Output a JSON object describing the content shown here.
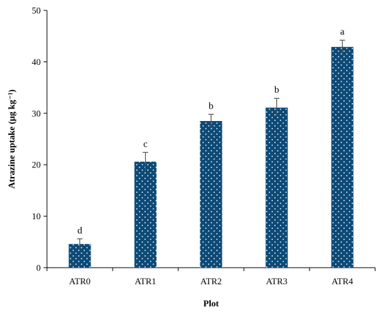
{
  "chart_data": {
    "type": "bar",
    "xlabel": "Plot",
    "ylabel": "Atrazine uptake (μg kg⁻¹)",
    "categories": [
      "ATR0",
      "ATR1",
      "ATR2",
      "ATR3",
      "ATR4"
    ],
    "values": [
      4.6,
      20.6,
      28.5,
      31.1,
      42.9
    ],
    "errors": [
      1.0,
      1.8,
      1.3,
      1.8,
      1.3
    ],
    "significance_letters": [
      "d",
      "c",
      "b",
      "b",
      "a"
    ],
    "ylim": [
      0,
      50
    ],
    "yticks": [
      "0",
      "10",
      "20",
      "30",
      "40",
      "50"
    ],
    "bar_color": "#0d4a77",
    "bar_pattern": "white-dots",
    "grid": false,
    "legend": "none"
  }
}
